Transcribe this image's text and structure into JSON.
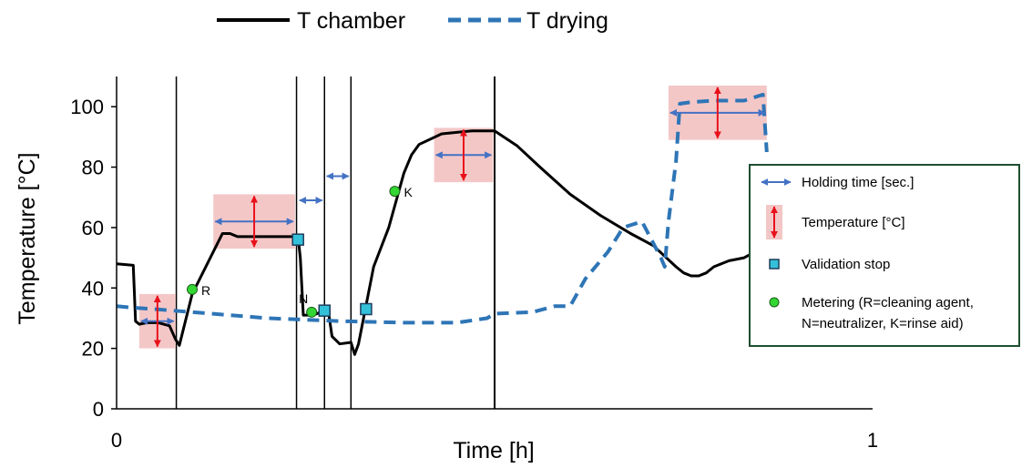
{
  "chart_data": {
    "type": "line",
    "xlabel": "Time [h]",
    "ylabel": "Temperature [°C]",
    "xlim": [
      0,
      1
    ],
    "ylim": [
      0,
      110
    ],
    "x_ticks": [
      {
        "value": 0,
        "label": "0"
      },
      {
        "value": 1,
        "label": "1"
      }
    ],
    "y_ticks": [
      {
        "value": 0,
        "label": "0"
      },
      {
        "value": 20,
        "label": "20"
      },
      {
        "value": 40,
        "label": "40"
      },
      {
        "value": 60,
        "label": "60"
      },
      {
        "value": 80,
        "label": "80"
      },
      {
        "value": 100,
        "label": "100"
      }
    ],
    "grid": false,
    "series": [
      {
        "name": "T chamber",
        "style": "solid",
        "color": "#000000",
        "points": [
          [
            0,
            48
          ],
          [
            0.022,
            47.5
          ],
          [
            0.025,
            29
          ],
          [
            0.03,
            28
          ],
          [
            0.04,
            28.5
          ],
          [
            0.055,
            28.5
          ],
          [
            0.07,
            27.5
          ],
          [
            0.078,
            23
          ],
          [
            0.083,
            21
          ],
          [
            0.1,
            38
          ],
          [
            0.12,
            48
          ],
          [
            0.14,
            58
          ],
          [
            0.15,
            58
          ],
          [
            0.16,
            57
          ],
          [
            0.2,
            57
          ],
          [
            0.24,
            57
          ],
          [
            0.243,
            50
          ],
          [
            0.247,
            31
          ],
          [
            0.26,
            31
          ],
          [
            0.27,
            32
          ],
          [
            0.28,
            32.5
          ],
          [
            0.285,
            24
          ],
          [
            0.295,
            21.5
          ],
          [
            0.31,
            22
          ],
          [
            0.315,
            18
          ],
          [
            0.32,
            21.5
          ],
          [
            0.34,
            47
          ],
          [
            0.36,
            60
          ],
          [
            0.37,
            69
          ],
          [
            0.38,
            78
          ],
          [
            0.39,
            84
          ],
          [
            0.4,
            87.5
          ],
          [
            0.43,
            91
          ],
          [
            0.47,
            92
          ],
          [
            0.5,
            92
          ],
          [
            0.53,
            87
          ],
          [
            0.56,
            80
          ],
          [
            0.6,
            71
          ],
          [
            0.64,
            64
          ],
          [
            0.68,
            58
          ],
          [
            0.71,
            54
          ],
          [
            0.74,
            47
          ],
          [
            0.75,
            45
          ],
          [
            0.76,
            44
          ],
          [
            0.77,
            44
          ],
          [
            0.78,
            45
          ],
          [
            0.79,
            47
          ],
          [
            0.81,
            49
          ],
          [
            0.83,
            50
          ],
          [
            0.86,
            54
          ]
        ]
      },
      {
        "name": "T drying",
        "style": "dashed",
        "color": "#2e75b6",
        "points": [
          [
            0,
            34
          ],
          [
            0.02,
            33.5
          ],
          [
            0.05,
            33
          ],
          [
            0.1,
            32
          ],
          [
            0.2,
            30
          ],
          [
            0.3,
            29
          ],
          [
            0.38,
            28.5
          ],
          [
            0.45,
            28.5
          ],
          [
            0.49,
            30
          ],
          [
            0.5,
            31.5
          ],
          [
            0.55,
            32
          ],
          [
            0.58,
            34
          ],
          [
            0.6,
            34
          ],
          [
            0.62,
            43
          ],
          [
            0.65,
            52
          ],
          [
            0.67,
            60
          ],
          [
            0.695,
            62
          ],
          [
            0.72,
            50
          ],
          [
            0.725,
            47
          ],
          [
            0.73,
            62
          ],
          [
            0.74,
            82
          ],
          [
            0.745,
            101
          ],
          [
            0.76,
            101.5
          ],
          [
            0.79,
            102
          ],
          [
            0.83,
            102
          ],
          [
            0.855,
            104
          ],
          [
            0.86,
            85
          ]
        ]
      }
    ],
    "legend": {
      "placement": "top-center",
      "items": [
        {
          "label": "T chamber",
          "style": "solid",
          "color": "#000000"
        },
        {
          "label": "T drying",
          "style": "dashed",
          "color": "#2e75b6"
        }
      ]
    },
    "phase_lines_x": [
      0.079,
      0.238,
      0.275,
      0.31,
      0.5
    ],
    "holding_windows": [
      {
        "x0": 0.03,
        "x1": 0.078,
        "y0": 20,
        "y1": 38
      },
      {
        "x0": 0.128,
        "x1": 0.236,
        "y0": 53,
        "y1": 71
      },
      {
        "x0": 0.42,
        "x1": 0.498,
        "y0": 75,
        "y1": 93
      },
      {
        "x0": 0.73,
        "x1": 0.86,
        "y0": 89,
        "y1": 107
      }
    ],
    "extra_holding_arrows": [
      {
        "x0": 0.242,
        "x1": 0.272,
        "y": 69
      },
      {
        "x0": 0.278,
        "x1": 0.307,
        "y": 77
      }
    ],
    "validation_stops": [
      [
        0.24,
        56
      ],
      [
        0.275,
        32.5
      ],
      [
        0.33,
        33
      ]
    ],
    "metering_points": [
      {
        "x": 0.1,
        "y": 39.5,
        "label": "R"
      },
      {
        "x": 0.258,
        "y": 32,
        "label": "N"
      },
      {
        "x": 0.368,
        "y": 72,
        "label": "K"
      }
    ],
    "key_box": {
      "placement": "right",
      "items": [
        {
          "kind": "holding",
          "label": "Holding time [sec.]"
        },
        {
          "kind": "temperature",
          "label": "Temperature [°C]"
        },
        {
          "kind": "validation",
          "label": "Validation stop"
        },
        {
          "kind": "metering",
          "label": "Metering (R=cleaning agent,",
          "label2": "N=neutralizer, K=rinse aid)"
        }
      ]
    },
    "colors": {
      "chamber": "#000000",
      "drying": "#2e75b6",
      "window_fill": "#f4c7c7",
      "temp_arrow": "#e8101a",
      "hold_arrow": "#4472c4",
      "validation": "#33c1d9",
      "metering": "#33d633",
      "key_border": "#1f4e2e"
    }
  }
}
